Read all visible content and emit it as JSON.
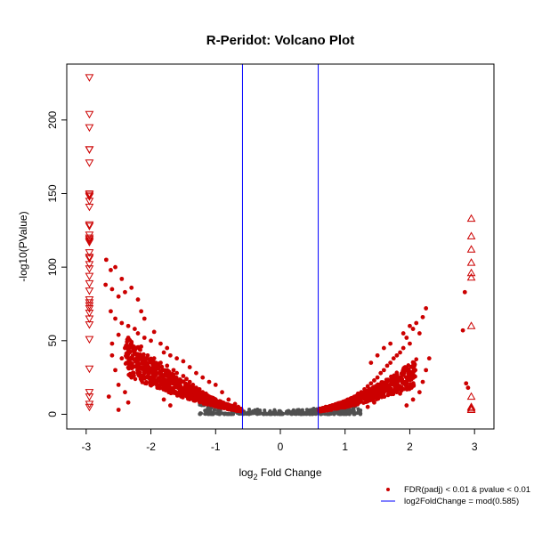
{
  "chart_data": {
    "type": "scatter",
    "title": "R-Peridot: Volcano Plot",
    "xlabel": {
      "base": "log",
      "sub": "2",
      "rest": " Fold Change"
    },
    "ylabel": "-log10(PValue)",
    "xlim": [
      -3.3,
      3.3
    ],
    "ylim": [
      -10,
      238
    ],
    "x_ticks": [
      -3,
      -2,
      -1,
      0,
      1,
      2,
      3
    ],
    "y_ticks": [
      0,
      50,
      100,
      150,
      200
    ],
    "vlines": [
      -0.585,
      0.585
    ],
    "colors": {
      "significant": "#cc0000",
      "nonsignificant": "#505050",
      "vline": "#0000ff"
    },
    "legend": [
      {
        "label": "FDR(padj) < 0.01 & pvalue < 0.01",
        "marker": "point",
        "color": "#cc0000"
      },
      {
        "label": "log2FoldChange = mod(0.585)",
        "marker": "line",
        "color": "#0000ff"
      }
    ],
    "legend_position": "bottom-right",
    "clipped_down": [
      229,
      204,
      195,
      180,
      180,
      171,
      150,
      149,
      148,
      145,
      141,
      129,
      128,
      122,
      120,
      119,
      118,
      117,
      110,
      107,
      106,
      102,
      99,
      94,
      89,
      84,
      78,
      76,
      74,
      72,
      69,
      65,
      61,
      51,
      31,
      15,
      12,
      7,
      5
    ],
    "clipped_up": [
      133,
      121,
      112,
      103,
      96,
      93,
      60,
      12,
      5,
      4,
      3
    ],
    "significant_points": [
      [
        -2.69,
        105
      ],
      [
        -2.62,
        98
      ],
      [
        -2.55,
        100
      ],
      [
        -2.45,
        92
      ],
      [
        -2.7,
        88
      ],
      [
        -2.6,
        85
      ],
      [
        -2.5,
        80
      ],
      [
        -2.4,
        83
      ],
      [
        -2.3,
        86
      ],
      [
        -2.2,
        78
      ],
      [
        -2.15,
        70
      ],
      [
        -2.1,
        65
      ],
      [
        -2.62,
        70
      ],
      [
        -2.55,
        65
      ],
      [
        -2.45,
        62
      ],
      [
        -2.35,
        60
      ],
      [
        -2.25,
        58
      ],
      [
        -2.5,
        54
      ],
      [
        -2.35,
        52
      ],
      [
        -2.2,
        55
      ],
      [
        -2.1,
        52
      ],
      [
        -2.0,
        50
      ],
      [
        -1.95,
        56
      ],
      [
        -1.85,
        48
      ],
      [
        -1.75,
        45
      ],
      [
        -2.6,
        40
      ],
      [
        -2.55,
        30
      ],
      [
        -2.5,
        20
      ],
      [
        -2.4,
        15
      ],
      [
        -2.3,
        25
      ],
      [
        -2.2,
        35
      ],
      [
        -2.1,
        28
      ],
      [
        -2.0,
        30
      ],
      [
        -2.35,
        8
      ],
      [
        -2.5,
        3
      ],
      [
        -1.9,
        18
      ],
      [
        -1.8,
        10
      ],
      [
        -1.7,
        6
      ],
      [
        -1.65,
        15
      ],
      [
        -1.55,
        22
      ],
      [
        -2.65,
        12
      ],
      [
        -2.45,
        38
      ],
      [
        -2.25,
        42
      ],
      [
        -2.05,
        40
      ],
      [
        -1.95,
        38
      ],
      [
        -1.85,
        35
      ],
      [
        -1.75,
        33
      ],
      [
        -1.65,
        30
      ],
      [
        -1.6,
        28
      ],
      [
        -1.5,
        26
      ],
      [
        -1.45,
        24
      ],
      [
        -1.4,
        22
      ],
      [
        -1.35,
        20
      ],
      [
        -1.3,
        18
      ],
      [
        -1.25,
        17
      ],
      [
        -1.2,
        15
      ],
      [
        -1.15,
        14
      ],
      [
        -1.1,
        12
      ],
      [
        -1.05,
        11
      ],
      [
        -1.0,
        10
      ],
      [
        -1.6,
        38
      ],
      [
        -1.5,
        36
      ],
      [
        -1.4,
        32
      ],
      [
        -1.3,
        28
      ],
      [
        -1.2,
        25
      ],
      [
        -1.1,
        22
      ],
      [
        -1.0,
        20
      ],
      [
        -0.9,
        15
      ],
      [
        -0.8,
        10
      ],
      [
        -0.7,
        7
      ],
      [
        -0.65,
        5
      ],
      [
        -1.8,
        42
      ],
      [
        -1.7,
        40
      ],
      [
        -2.15,
        46
      ],
      [
        -2.3,
        48
      ],
      [
        -2.4,
        45
      ],
      [
        -2.6,
        48
      ],
      [
        2.25,
        72
      ],
      [
        2.2,
        66
      ],
      [
        2.1,
        62
      ],
      [
        2.05,
        58
      ],
      [
        2.15,
        55
      ],
      [
        1.95,
        52
      ],
      [
        2.0,
        48
      ],
      [
        1.9,
        45
      ],
      [
        1.85,
        42
      ],
      [
        1.8,
        40
      ],
      [
        1.75,
        38
      ],
      [
        1.7,
        35
      ],
      [
        1.65,
        33
      ],
      [
        1.6,
        30
      ],
      [
        1.55,
        28
      ],
      [
        1.5,
        25
      ],
      [
        1.45,
        23
      ],
      [
        1.4,
        21
      ],
      [
        1.35,
        19
      ],
      [
        1.3,
        17
      ],
      [
        1.25,
        15
      ],
      [
        1.2,
        14
      ],
      [
        1.15,
        12
      ],
      [
        1.1,
        11
      ],
      [
        1.05,
        10
      ],
      [
        1.0,
        9
      ],
      [
        0.95,
        8
      ],
      [
        0.9,
        7
      ],
      [
        0.8,
        6
      ],
      [
        0.7,
        5
      ],
      [
        0.65,
        4
      ],
      [
        2.3,
        38
      ],
      [
        2.25,
        30
      ],
      [
        2.2,
        22
      ],
      [
        2.15,
        15
      ],
      [
        2.05,
        10
      ],
      [
        1.95,
        6
      ],
      [
        1.85,
        14
      ],
      [
        1.75,
        25
      ],
      [
        1.65,
        20
      ],
      [
        1.55,
        12
      ],
      [
        1.45,
        8
      ],
      [
        1.35,
        5
      ],
      [
        2.85,
        83
      ],
      [
        2.82,
        57
      ],
      [
        2.87,
        21
      ],
      [
        2.9,
        18
      ],
      [
        1.6,
        45
      ],
      [
        1.7,
        48
      ],
      [
        1.9,
        55
      ],
      [
        2.0,
        60
      ],
      [
        1.5,
        40
      ],
      [
        1.4,
        35
      ]
    ]
  }
}
